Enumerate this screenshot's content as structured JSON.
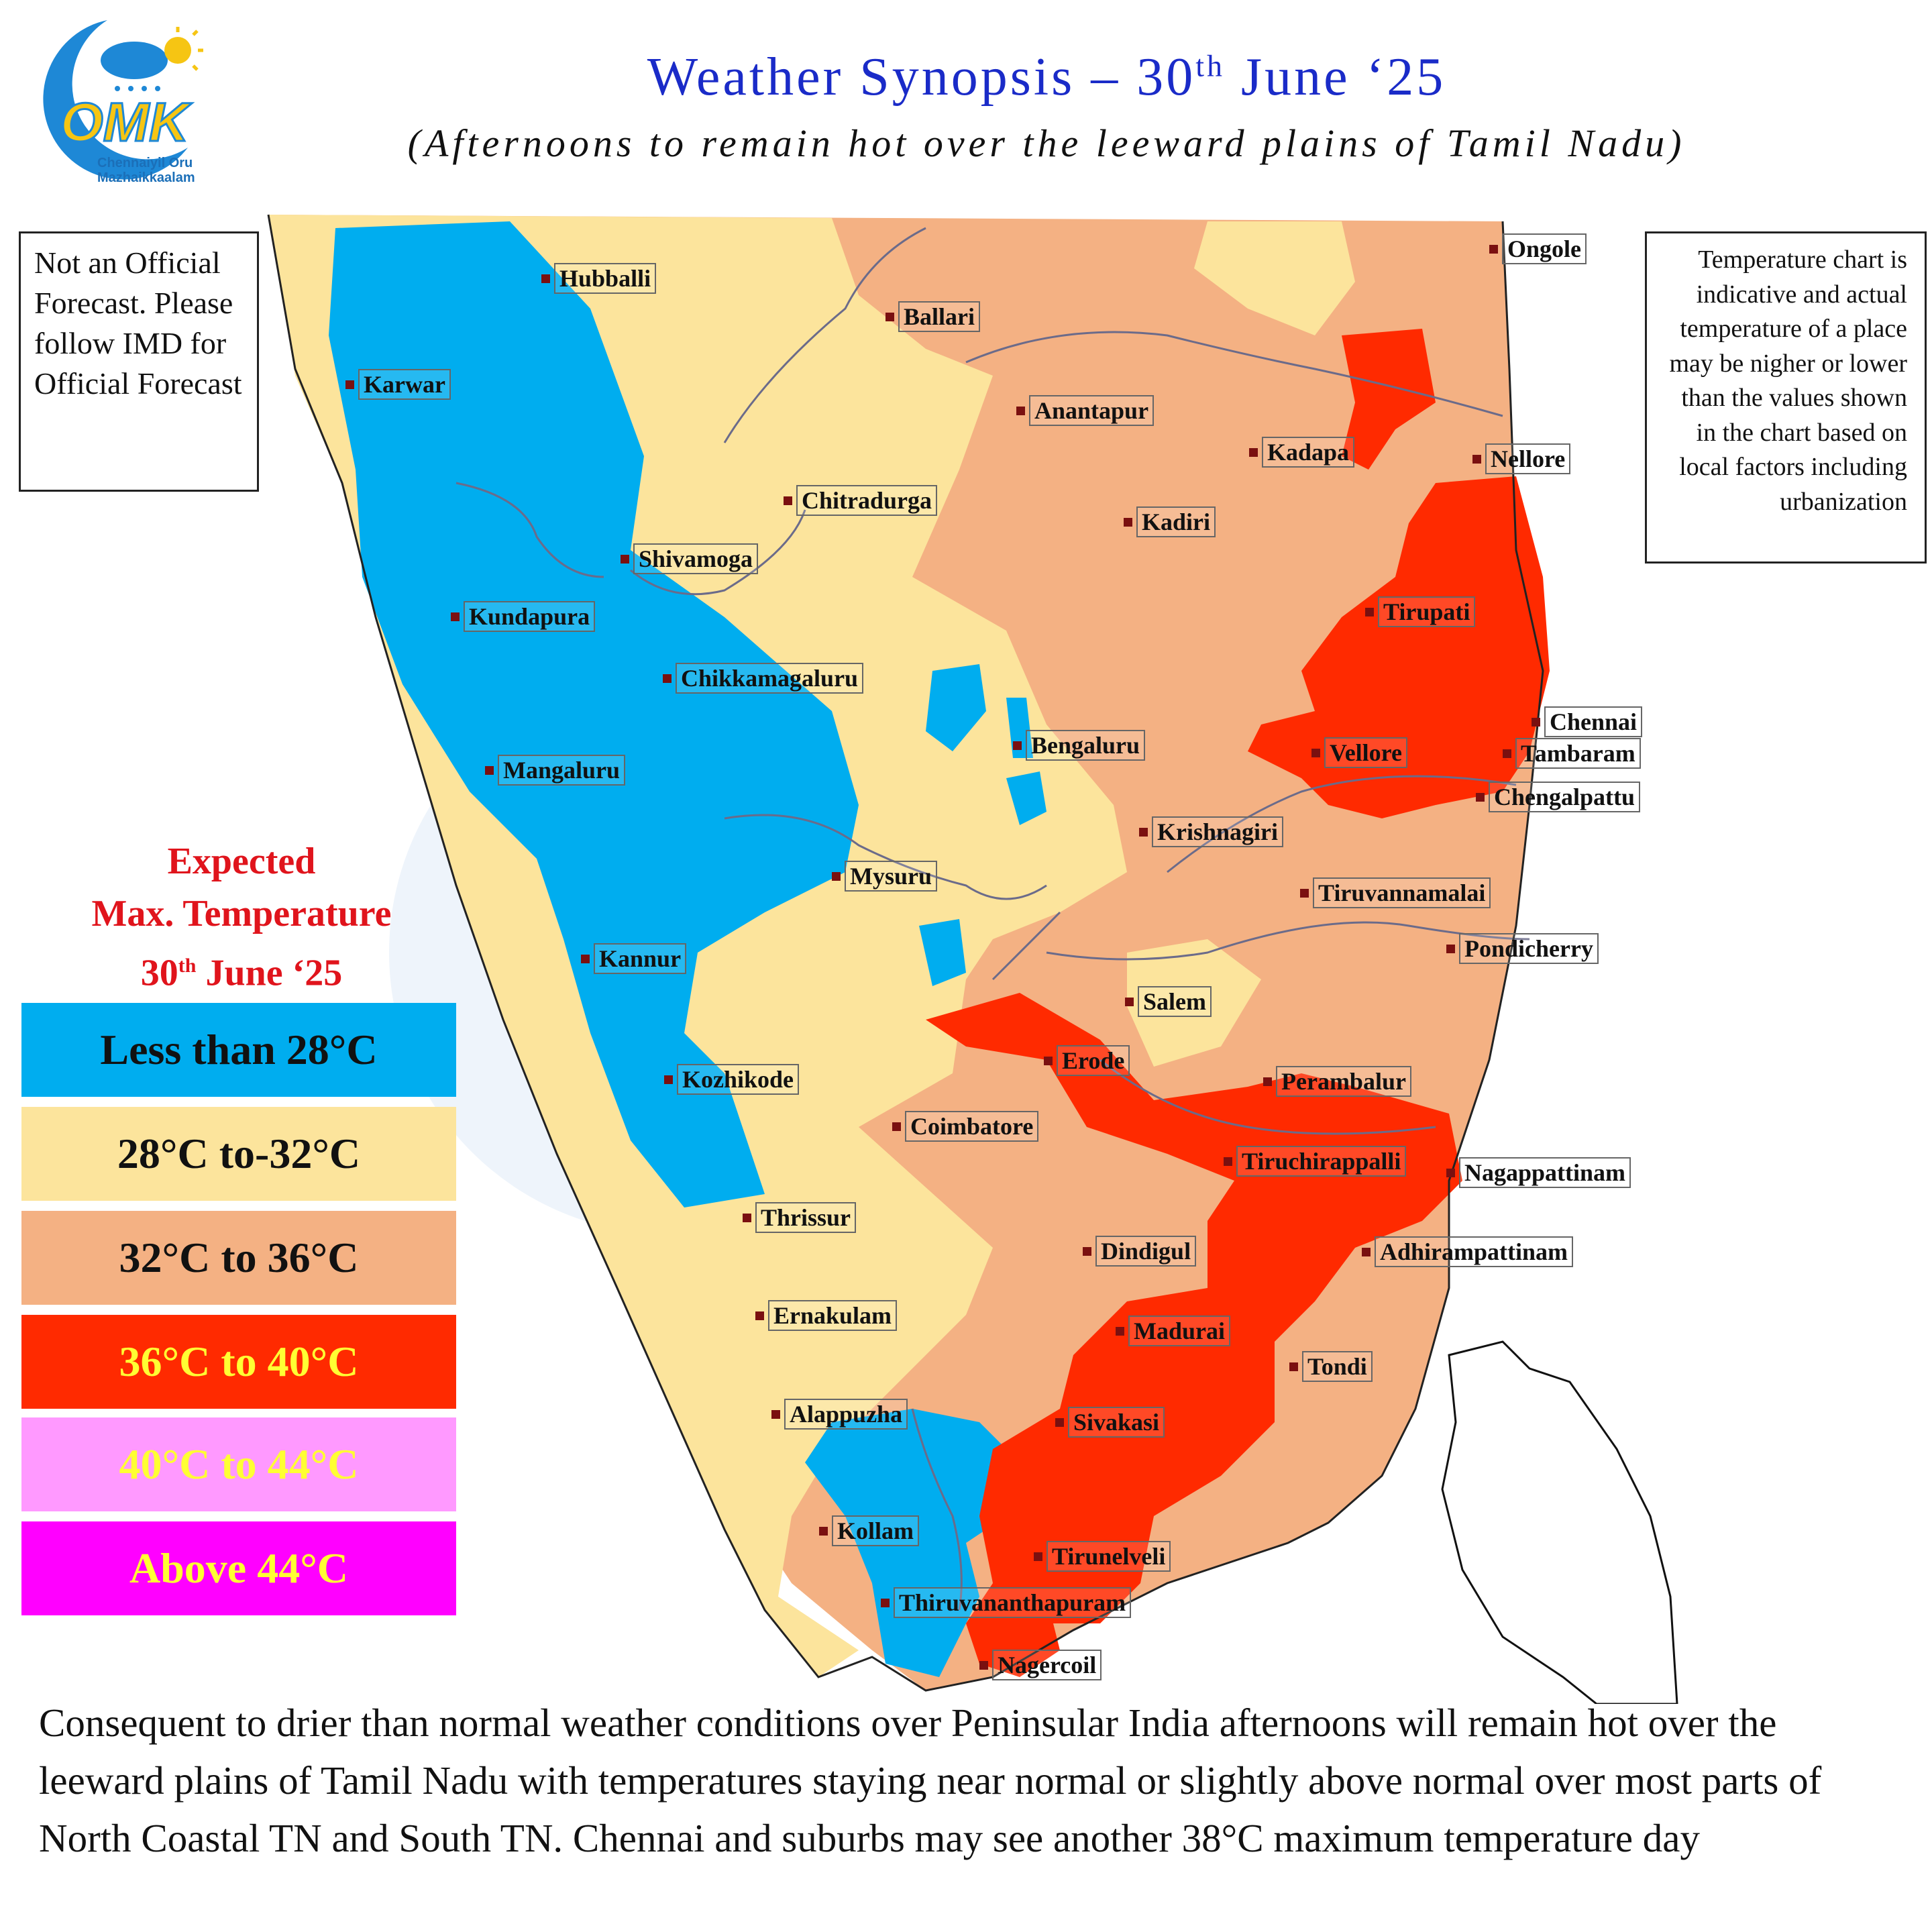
{
  "logo": {
    "brand": "OMK",
    "line1": "Chennaiyil Oru",
    "line2": "Mazhaikkaalam"
  },
  "header": {
    "title_main": "Weather Synopsis – 30",
    "title_sup": "th",
    "title_end": " June ‘25",
    "subtitle": "(Afternoons to remain hot over the leeward plains of  Tamil Nadu)"
  },
  "notice": {
    "text": "Not an Official Forecast. Please follow IMD for Official Forecast"
  },
  "disclaimer": {
    "text": "Temperature chart is indicative and actual temperature of a place may be nigher or lower than the values shown in the chart based on local factors including urbanization"
  },
  "legend": {
    "title_line1": "Expected",
    "title_line2": "Max. Temperature",
    "title_line3_a": "30",
    "title_line3_sup": "th",
    "title_line3_b": " June ‘25",
    "items": [
      {
        "label": "Less than 28°C",
        "bg": "#00adef",
        "fg": "#111111"
      },
      {
        "label": "28°C to-32°C",
        "bg": "#fce49c",
        "fg": "#111111"
      },
      {
        "label": "32°C to 36°C",
        "bg": "#f4b183",
        "fg": "#111111"
      },
      {
        "label": "36°C to 40°C",
        "bg": "#ff2a00",
        "fg": "#ffff33"
      },
      {
        "label": "40°C to 44°C",
        "bg": "#ff99ff",
        "fg": "#ffff33"
      },
      {
        "label": "Above 44°C",
        "bg": "#ff00ff",
        "fg": "#ffff33"
      }
    ]
  },
  "cities": [
    "Hubballi",
    "Ballari",
    "Ongole",
    "Karwar",
    "Anantapur",
    "Kadapa",
    "Nellore",
    "Chitradurga",
    "Kadiri",
    "Shivamoga",
    "Tirupati",
    "Kundapura",
    "Chikkamagaluru",
    "Chennai",
    "Bengaluru",
    "Vellore",
    "Tambaram",
    "Mangaluru",
    "Chengalpattu",
    "Krishnagiri",
    "Mysuru",
    "Tiruvannamalai",
    "Kannur",
    "Pondicherry",
    "Salem",
    "Erode",
    "Kozhikode",
    "Perambalur",
    "Coimbatore",
    "Tiruchirappalli",
    "Nagappattinam",
    "Thrissur",
    "Dindigul",
    "Adhirampattinam",
    "Ernakulam",
    "Madurai",
    "Tondi",
    "Alappuzha",
    "Sivakasi",
    "Kollam",
    "Tirunelveli",
    "Thiruvananthapuram",
    "Nagercoil"
  ],
  "summary": "Consequent to drier than normal weather conditions over Peninsular India afternoons will remain hot over the leeward plains of  Tamil Nadu with temperatures staying near normal or slightly above normal over most parts of  North Coastal TN and South TN. Chennai and suburbs may see another 38°C maximum temperature day"
}
